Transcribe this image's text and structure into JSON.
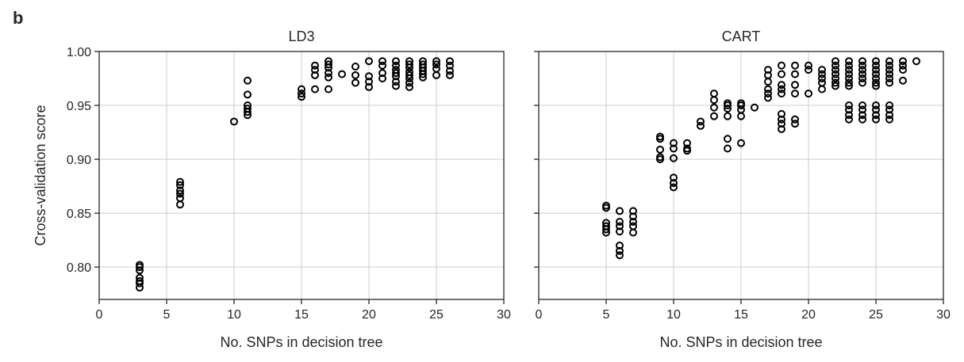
{
  "panel_label": "b",
  "chart_data": [
    {
      "type": "scatter",
      "title": "LD3",
      "xlabel": "No. SNPs in decision tree",
      "ylabel": "Cross-validation score",
      "xlim": [
        0,
        30
      ],
      "ylim": [
        0.77,
        1.0
      ],
      "xticks": [
        "0",
        "5",
        "10",
        "15",
        "20",
        "25",
        "30"
      ],
      "yticks": [
        "0.80",
        "0.85",
        "0.90",
        "0.95",
        "1.00"
      ],
      "grid": true,
      "points": [
        [
          3,
          0.802
        ],
        [
          3,
          0.8
        ],
        [
          3,
          0.797
        ],
        [
          3,
          0.79
        ],
        [
          3,
          0.787
        ],
        [
          3,
          0.785
        ],
        [
          3,
          0.781
        ],
        [
          6,
          0.879
        ],
        [
          6,
          0.876
        ],
        [
          6,
          0.871
        ],
        [
          6,
          0.868
        ],
        [
          6,
          0.864
        ],
        [
          6,
          0.858
        ],
        [
          10,
          0.935
        ],
        [
          11,
          0.973
        ],
        [
          11,
          0.96
        ],
        [
          11,
          0.95
        ],
        [
          11,
          0.947
        ],
        [
          11,
          0.944
        ],
        [
          11,
          0.941
        ],
        [
          15,
          0.965
        ],
        [
          15,
          0.961
        ],
        [
          15,
          0.958
        ],
        [
          16,
          0.987
        ],
        [
          16,
          0.983
        ],
        [
          16,
          0.978
        ],
        [
          16,
          0.965
        ],
        [
          17,
          0.991
        ],
        [
          17,
          0.988
        ],
        [
          17,
          0.985
        ],
        [
          17,
          0.98
        ],
        [
          17,
          0.976
        ],
        [
          17,
          0.965
        ],
        [
          18,
          0.979
        ],
        [
          19,
          0.986
        ],
        [
          19,
          0.978
        ],
        [
          19,
          0.971
        ],
        [
          20,
          0.991
        ],
        [
          20,
          0.977
        ],
        [
          20,
          0.972
        ],
        [
          20,
          0.967
        ],
        [
          21,
          0.991
        ],
        [
          21,
          0.987
        ],
        [
          21,
          0.98
        ],
        [
          21,
          0.975
        ],
        [
          22,
          0.991
        ],
        [
          22,
          0.987
        ],
        [
          22,
          0.983
        ],
        [
          22,
          0.98
        ],
        [
          22,
          0.977
        ],
        [
          22,
          0.972
        ],
        [
          22,
          0.968
        ],
        [
          23,
          0.991
        ],
        [
          23,
          0.988
        ],
        [
          23,
          0.985
        ],
        [
          23,
          0.981
        ],
        [
          23,
          0.978
        ],
        [
          23,
          0.975
        ],
        [
          23,
          0.971
        ],
        [
          23,
          0.967
        ],
        [
          24,
          0.991
        ],
        [
          24,
          0.988
        ],
        [
          24,
          0.985
        ],
        [
          24,
          0.982
        ],
        [
          24,
          0.979
        ],
        [
          24,
          0.976
        ],
        [
          25,
          0.991
        ],
        [
          25,
          0.988
        ],
        [
          25,
          0.984
        ],
        [
          25,
          0.978
        ],
        [
          26,
          0.991
        ],
        [
          26,
          0.987
        ],
        [
          26,
          0.982
        ],
        [
          26,
          0.978
        ]
      ]
    },
    {
      "type": "scatter",
      "title": "CART",
      "xlabel": "No. SNPs in decision tree",
      "ylabel": "",
      "xlim": [
        0,
        30
      ],
      "ylim": [
        0.77,
        1.0
      ],
      "xticks": [
        "0",
        "5",
        "10",
        "15",
        "20",
        "25",
        "30"
      ],
      "yticks": [],
      "grid": true,
      "points": [
        [
          5,
          0.857
        ],
        [
          5,
          0.855
        ],
        [
          5,
          0.841
        ],
        [
          5,
          0.838
        ],
        [
          5,
          0.835
        ],
        [
          5,
          0.832
        ],
        [
          6,
          0.852
        ],
        [
          6,
          0.842
        ],
        [
          6,
          0.838
        ],
        [
          6,
          0.833
        ],
        [
          6,
          0.82
        ],
        [
          6,
          0.815
        ],
        [
          6,
          0.811
        ],
        [
          7,
          0.852
        ],
        [
          7,
          0.847
        ],
        [
          7,
          0.842
        ],
        [
          7,
          0.838
        ],
        [
          7,
          0.832
        ],
        [
          9,
          0.921
        ],
        [
          9,
          0.919
        ],
        [
          9,
          0.909
        ],
        [
          9,
          0.902
        ],
        [
          9,
          0.9
        ],
        [
          10,
          0.915
        ],
        [
          10,
          0.91
        ],
        [
          10,
          0.901
        ],
        [
          10,
          0.883
        ],
        [
          10,
          0.878
        ],
        [
          10,
          0.874
        ],
        [
          11,
          0.915
        ],
        [
          11,
          0.91
        ],
        [
          11,
          0.908
        ],
        [
          12,
          0.935
        ],
        [
          12,
          0.931
        ],
        [
          13,
          0.961
        ],
        [
          13,
          0.955
        ],
        [
          13,
          0.948
        ],
        [
          13,
          0.94
        ],
        [
          14,
          0.952
        ],
        [
          14,
          0.95
        ],
        [
          14,
          0.947
        ],
        [
          14,
          0.94
        ],
        [
          14,
          0.919
        ],
        [
          14,
          0.91
        ],
        [
          15,
          0.952
        ],
        [
          15,
          0.95
        ],
        [
          15,
          0.946
        ],
        [
          15,
          0.94
        ],
        [
          15,
          0.915
        ],
        [
          16,
          0.948
        ],
        [
          17,
          0.983
        ],
        [
          17,
          0.978
        ],
        [
          17,
          0.972
        ],
        [
          17,
          0.965
        ],
        [
          17,
          0.961
        ],
        [
          17,
          0.957
        ],
        [
          18,
          0.987
        ],
        [
          18,
          0.979
        ],
        [
          18,
          0.969
        ],
        [
          18,
          0.965
        ],
        [
          18,
          0.961
        ],
        [
          18,
          0.942
        ],
        [
          18,
          0.937
        ],
        [
          18,
          0.933
        ],
        [
          18,
          0.928
        ],
        [
          19,
          0.987
        ],
        [
          19,
          0.979
        ],
        [
          19,
          0.969
        ],
        [
          19,
          0.961
        ],
        [
          19,
          0.937
        ],
        [
          19,
          0.933
        ],
        [
          20,
          0.987
        ],
        [
          20,
          0.983
        ],
        [
          20,
          0.961
        ],
        [
          21,
          0.983
        ],
        [
          21,
          0.979
        ],
        [
          21,
          0.975
        ],
        [
          21,
          0.971
        ],
        [
          21,
          0.965
        ],
        [
          22,
          0.991
        ],
        [
          22,
          0.987
        ],
        [
          22,
          0.983
        ],
        [
          22,
          0.979
        ],
        [
          22,
          0.975
        ],
        [
          22,
          0.971
        ],
        [
          22,
          0.968
        ],
        [
          23,
          0.991
        ],
        [
          23,
          0.987
        ],
        [
          23,
          0.983
        ],
        [
          23,
          0.979
        ],
        [
          23,
          0.975
        ],
        [
          23,
          0.971
        ],
        [
          23,
          0.968
        ],
        [
          23,
          0.95
        ],
        [
          23,
          0.946
        ],
        [
          23,
          0.941
        ],
        [
          23,
          0.937
        ],
        [
          24,
          0.991
        ],
        [
          24,
          0.987
        ],
        [
          24,
          0.983
        ],
        [
          24,
          0.979
        ],
        [
          24,
          0.975
        ],
        [
          24,
          0.971
        ],
        [
          24,
          0.95
        ],
        [
          24,
          0.946
        ],
        [
          24,
          0.941
        ],
        [
          24,
          0.937
        ],
        [
          25,
          0.991
        ],
        [
          25,
          0.987
        ],
        [
          25,
          0.983
        ],
        [
          25,
          0.979
        ],
        [
          25,
          0.975
        ],
        [
          25,
          0.971
        ],
        [
          25,
          0.968
        ],
        [
          25,
          0.95
        ],
        [
          25,
          0.946
        ],
        [
          25,
          0.941
        ],
        [
          25,
          0.937
        ],
        [
          26,
          0.991
        ],
        [
          26,
          0.987
        ],
        [
          26,
          0.983
        ],
        [
          26,
          0.979
        ],
        [
          26,
          0.975
        ],
        [
          26,
          0.971
        ],
        [
          26,
          0.95
        ],
        [
          26,
          0.946
        ],
        [
          26,
          0.941
        ],
        [
          26,
          0.937
        ],
        [
          27,
          0.991
        ],
        [
          27,
          0.987
        ],
        [
          27,
          0.983
        ],
        [
          27,
          0.973
        ],
        [
          28,
          0.991
        ]
      ]
    }
  ]
}
